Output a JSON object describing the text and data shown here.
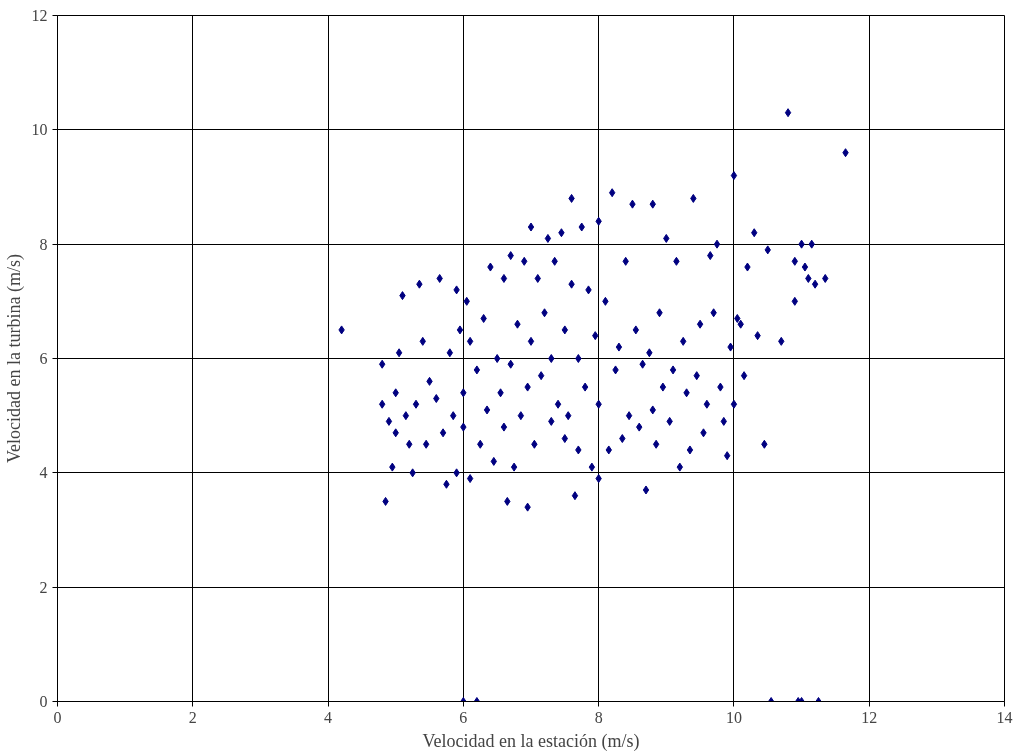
{
  "chart_data": {
    "type": "scatter",
    "xlabel": "Velocidad en la estación (m/s)",
    "ylabel": "Velocidad en la turbina (m/s)",
    "xlim": [
      0,
      14
    ],
    "ylim": [
      0,
      12
    ],
    "xticks": [
      0,
      2,
      4,
      6,
      8,
      10,
      12,
      14
    ],
    "yticks": [
      0,
      2,
      4,
      6,
      8,
      10,
      12
    ],
    "grid": true,
    "marker": "diamond",
    "series": [
      {
        "color": "#000080",
        "x": [
          4.2,
          4.85,
          10.8,
          11.65,
          10.0,
          10.45,
          10.7,
          11.35,
          10.9,
          6.0,
          6.2,
          10.55,
          10.95,
          11.0,
          11.25,
          4.8,
          4.8,
          4.9,
          4.95,
          5.0,
          5.0,
          5.05,
          5.1,
          5.15,
          5.2,
          5.25,
          5.3,
          5.35,
          5.4,
          5.45,
          5.5,
          5.6,
          5.65,
          5.7,
          5.75,
          5.8,
          5.85,
          5.9,
          5.9,
          5.95,
          6.0,
          6.0,
          6.05,
          6.1,
          6.1,
          6.2,
          6.25,
          6.3,
          6.35,
          6.4,
          6.45,
          6.5,
          6.55,
          6.6,
          6.6,
          6.65,
          6.7,
          6.7,
          6.75,
          6.8,
          6.85,
          6.9,
          6.95,
          6.95,
          7.0,
          7.0,
          7.05,
          7.1,
          7.15,
          7.2,
          7.25,
          7.3,
          7.3,
          7.35,
          7.4,
          7.45,
          7.5,
          7.5,
          7.55,
          7.6,
          7.6,
          7.65,
          7.7,
          7.7,
          7.75,
          7.8,
          7.85,
          7.9,
          7.95,
          8.0,
          8.0,
          8.0,
          8.1,
          8.15,
          8.2,
          8.25,
          8.3,
          8.35,
          8.4,
          8.45,
          8.5,
          8.55,
          8.6,
          8.65,
          8.7,
          8.75,
          8.8,
          8.8,
          8.85,
          8.9,
          8.95,
          9.0,
          9.05,
          9.1,
          9.15,
          9.2,
          9.25,
          9.3,
          9.35,
          9.4,
          9.45,
          9.5,
          9.55,
          9.6,
          9.65,
          9.7,
          9.75,
          9.8,
          9.85,
          9.9,
          9.95,
          10.0,
          10.05,
          10.1,
          10.15,
          10.2,
          10.3,
          10.35,
          10.5,
          10.9,
          11.0,
          11.05,
          11.15,
          11.1,
          11.2
        ],
        "values": [
          6.5,
          3.5,
          10.3,
          9.6,
          9.2,
          4.5,
          6.3,
          7.4,
          7.0,
          0,
          0,
          0,
          0,
          0,
          0,
          5.9,
          5.2,
          4.9,
          4.1,
          4.7,
          5.4,
          6.1,
          7.1,
          5.0,
          4.5,
          4.0,
          5.2,
          7.3,
          6.3,
          4.5,
          5.6,
          5.3,
          7.4,
          4.7,
          3.8,
          6.1,
          5.0,
          7.2,
          4.0,
          6.5,
          5.4,
          4.8,
          7.0,
          6.3,
          3.9,
          5.8,
          4.5,
          6.7,
          5.1,
          7.6,
          4.2,
          6.0,
          5.4,
          7.4,
          4.8,
          3.5,
          7.8,
          5.9,
          4.1,
          6.6,
          5.0,
          7.7,
          3.4,
          5.5,
          8.3,
          6.3,
          4.5,
          7.4,
          5.7,
          6.8,
          8.1,
          4.9,
          6.0,
          7.7,
          5.2,
          8.2,
          6.5,
          4.6,
          5.0,
          8.8,
          7.3,
          3.6,
          6.0,
          4.4,
          8.3,
          5.5,
          7.2,
          4.1,
          6.4,
          8.4,
          3.9,
          5.2,
          7.0,
          4.4,
          8.9,
          5.8,
          6.2,
          4.6,
          7.7,
          5.0,
          8.7,
          6.5,
          4.8,
          5.9,
          3.7,
          6.1,
          8.7,
          5.1,
          4.5,
          6.8,
          5.5,
          8.1,
          4.9,
          5.8,
          7.7,
          4.1,
          6.3,
          5.4,
          4.4,
          8.8,
          5.7,
          6.6,
          4.7,
          5.2,
          7.8,
          6.8,
          8.0,
          5.5,
          4.9,
          4.3,
          6.2,
          5.2,
          6.7,
          6.6,
          5.7,
          7.6,
          8.2,
          6.4,
          7.9,
          7.7,
          8.0,
          7.6,
          8.0,
          7.4,
          7.3
        ]
      }
    ]
  }
}
